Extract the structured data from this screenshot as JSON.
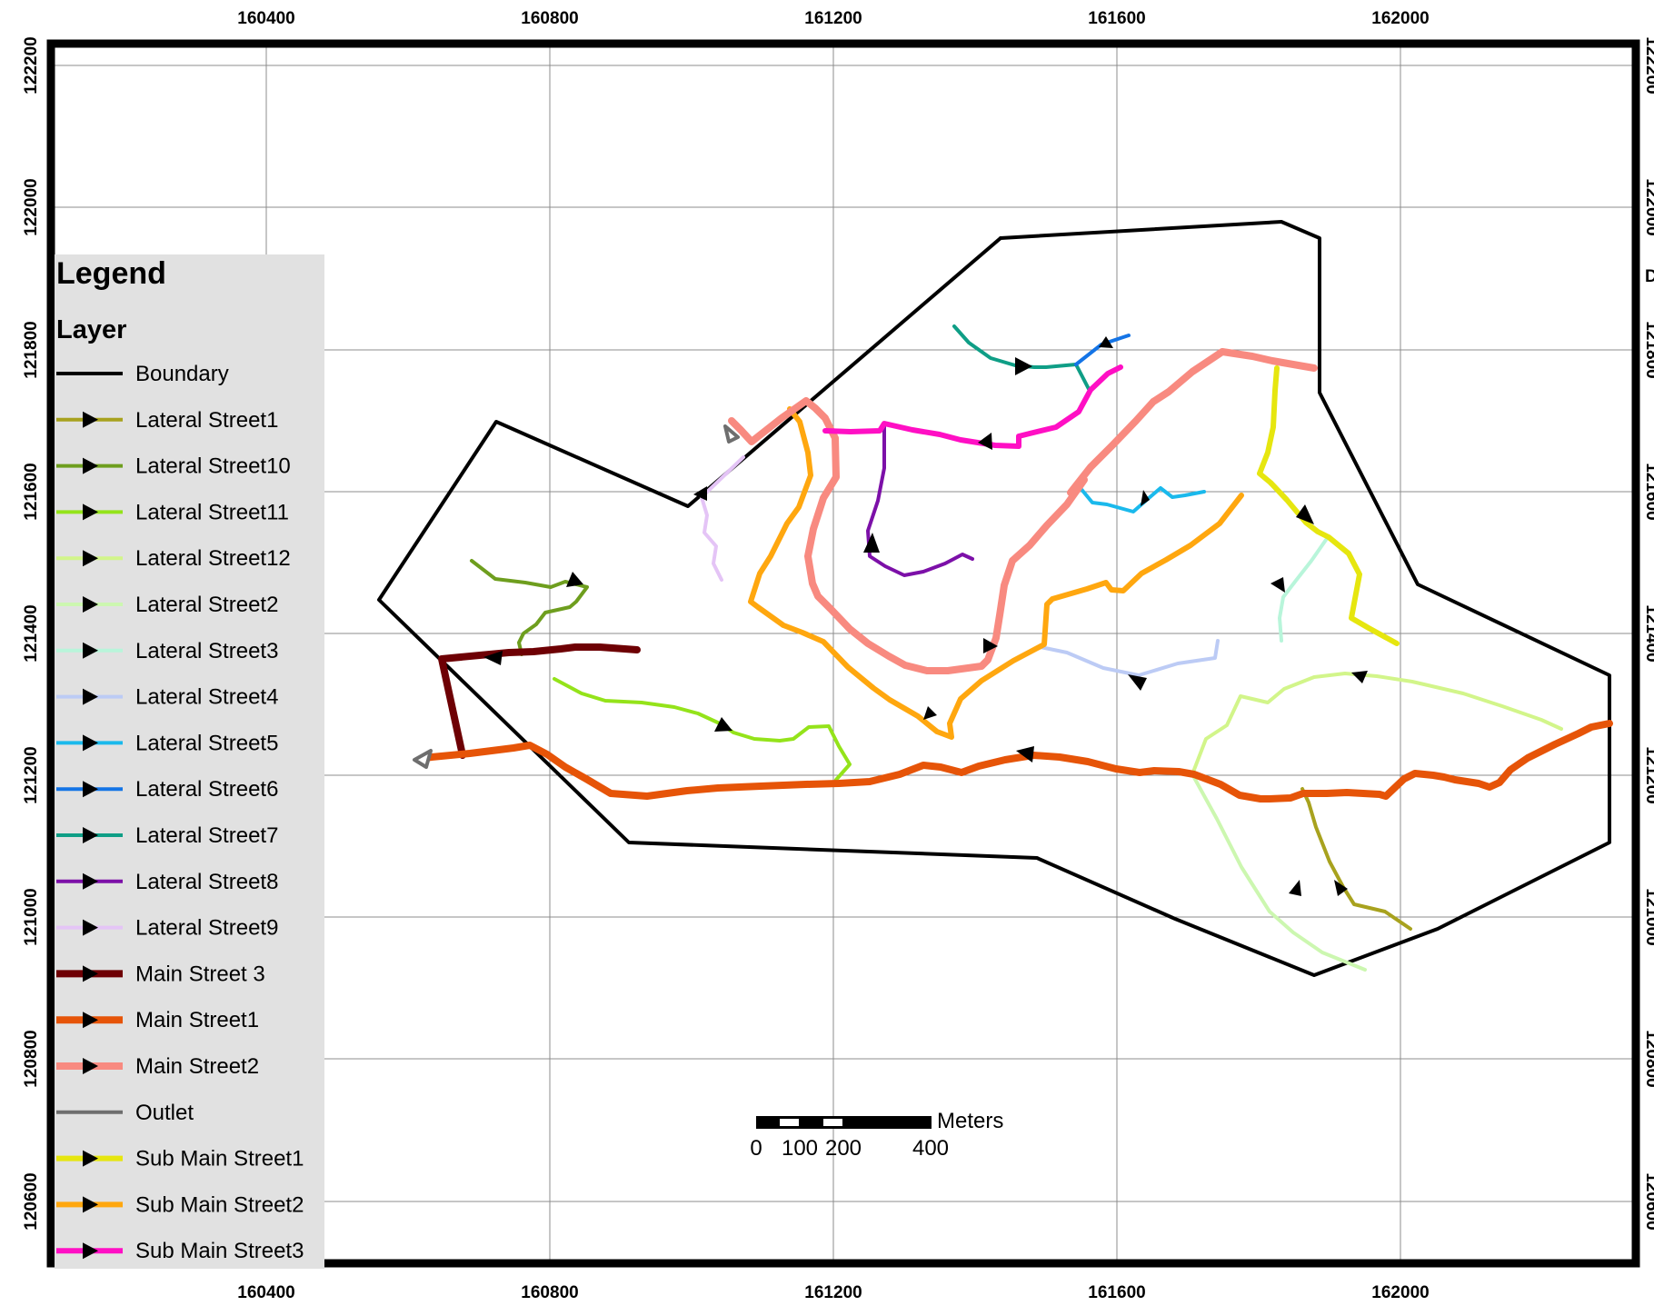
{
  "legend": {
    "title": "Legend",
    "subtitle": "Layer",
    "items": [
      {
        "label": "Boundary",
        "color": "#000000",
        "width": 4,
        "arrow": false
      },
      {
        "label": "Lateral Street1",
        "color": "#a8a21e",
        "width": 4,
        "arrow": true
      },
      {
        "label": "Lateral Street10",
        "color": "#6e9e1e",
        "width": 4,
        "arrow": true
      },
      {
        "label": "Lateral Street11",
        "color": "#94e31a",
        "width": 4,
        "arrow": true
      },
      {
        "label": "Lateral Street12",
        "color": "#d2f58a",
        "width": 4,
        "arrow": true
      },
      {
        "label": "Lateral Street2",
        "color": "#ccf7b0",
        "width": 4,
        "arrow": true
      },
      {
        "label": "Lateral Street3",
        "color": "#b8f5da",
        "width": 4,
        "arrow": true
      },
      {
        "label": "Lateral Street4",
        "color": "#bccbf5",
        "width": 4,
        "arrow": true
      },
      {
        "label": "Lateral Street5",
        "color": "#1ab9ec",
        "width": 4,
        "arrow": true
      },
      {
        "label": "Lateral Street6",
        "color": "#1474e6",
        "width": 4,
        "arrow": true
      },
      {
        "label": "Lateral Street7",
        "color": "#0f9e86",
        "width": 4,
        "arrow": true
      },
      {
        "label": "Lateral Street8",
        "color": "#7c10a8",
        "width": 4,
        "arrow": true
      },
      {
        "label": "Lateral Street9",
        "color": "#e4c4f6",
        "width": 4,
        "arrow": true
      },
      {
        "label": "Main Street 3",
        "color": "#6e0004",
        "width": 8,
        "arrow": true
      },
      {
        "label": "Main Street1",
        "color": "#e65408",
        "width": 8,
        "arrow": true
      },
      {
        "label": "Main Street2",
        "color": "#f88a80",
        "width": 8,
        "arrow": true
      },
      {
        "label": "Outlet",
        "color": "#6e6e6e",
        "width": 4,
        "arrow": false
      },
      {
        "label": "Sub Main Street1",
        "color": "#e6e60f",
        "width": 6,
        "arrow": true
      },
      {
        "label": "Sub Main Street2",
        "color": "#ffa70f",
        "width": 6,
        "arrow": true
      },
      {
        "label": "Sub Main Street3",
        "color": "#ff0fc4",
        "width": 6,
        "arrow": true
      }
    ]
  },
  "axes": {
    "x_ticks": [
      "160400",
      "160800",
      "161200",
      "161600",
      "162000"
    ],
    "y_ticks": [
      "122200",
      "122000",
      "121800",
      "121600",
      "121400",
      "121200",
      "121000",
      "120800",
      "120600"
    ],
    "right_edge_label": "D"
  },
  "scale_bar": {
    "unit": "Meters",
    "labels": [
      "0",
      "100",
      "200",
      "400"
    ]
  }
}
